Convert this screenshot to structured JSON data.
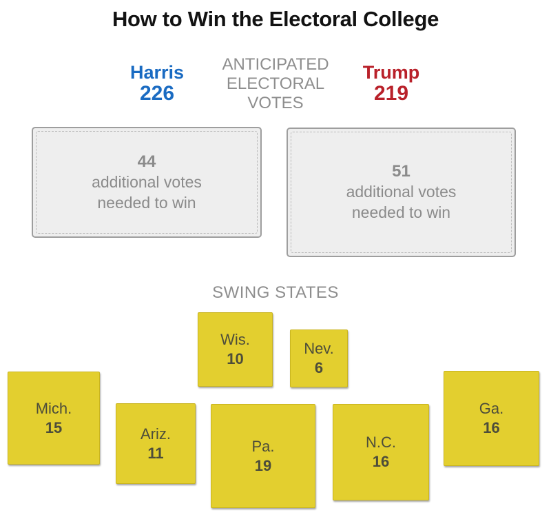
{
  "title": "How to Win the Electoral College",
  "candidates": {
    "harris": {
      "name": "Harris",
      "votes": "226",
      "color": "#1a6bc2"
    },
    "trump": {
      "name": "Trump",
      "votes": "219",
      "color": "#b9212a"
    }
  },
  "anticipated_label": [
    "ANTICIPATED",
    "ELECTORAL",
    "VOTES"
  ],
  "needed": {
    "harris": {
      "votes": "44",
      "line1": "additional votes",
      "line2": "needed to win"
    },
    "trump": {
      "votes": "51",
      "line1": "additional votes",
      "line2": "needed to win"
    }
  },
  "swing_label": "SWING STATES",
  "swing_color": "#e3cf2f",
  "states": {
    "wis": {
      "name": "Wis.",
      "votes": "10"
    },
    "nev": {
      "name": "Nev.",
      "votes": "6"
    },
    "mich": {
      "name": "Mich.",
      "votes": "15"
    },
    "ariz": {
      "name": "Ariz.",
      "votes": "11"
    },
    "pa": {
      "name": "Pa.",
      "votes": "19"
    },
    "nc": {
      "name": "N.C.",
      "votes": "16"
    },
    "ga": {
      "name": "Ga.",
      "votes": "16"
    }
  }
}
